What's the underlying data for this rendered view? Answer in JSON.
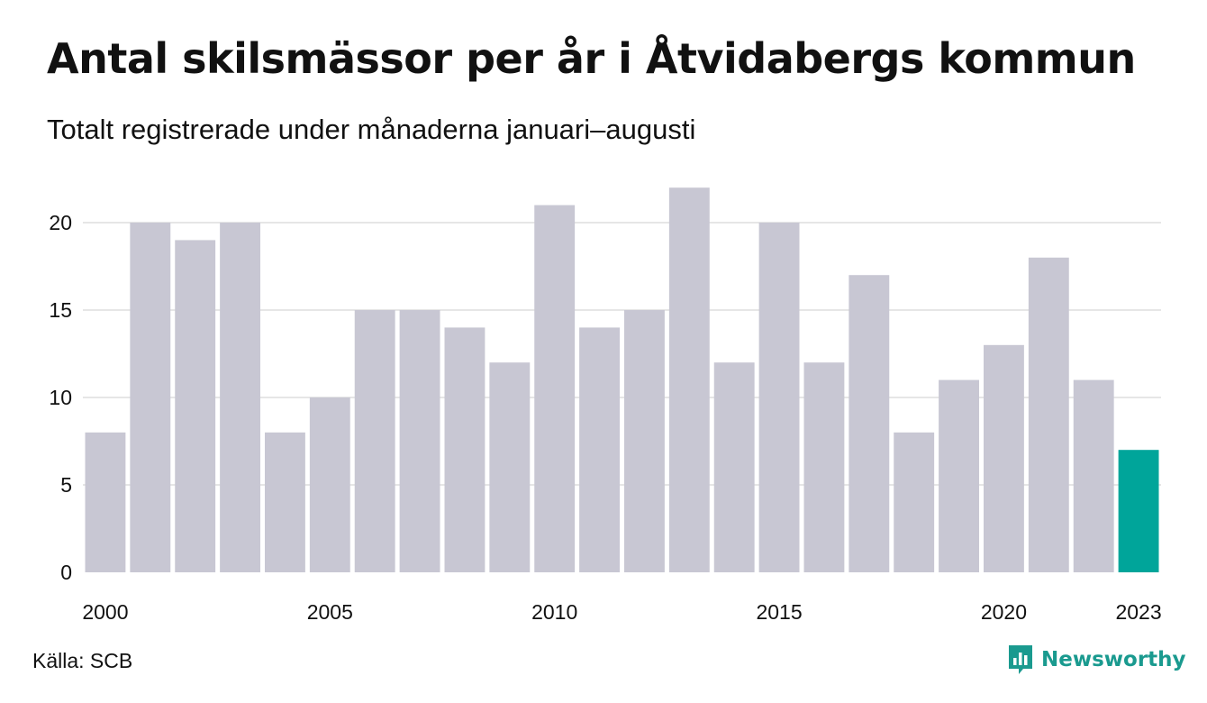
{
  "title": "Antal skilsmässor per år i Åtvidabergs kommun",
  "subtitle": "Totalt registrerade under månaderna januari–augusti",
  "source": "Källa: SCB",
  "brand": {
    "name": "Newsworthy",
    "icon": "newsworthy-logo-icon",
    "color": "#1a9a8f"
  },
  "chart_data": {
    "type": "bar",
    "categories": [
      "2000",
      "2001",
      "2002",
      "2003",
      "2004",
      "2005",
      "2006",
      "2007",
      "2008",
      "2009",
      "2010",
      "2011",
      "2012",
      "2013",
      "2014",
      "2015",
      "2016",
      "2017",
      "2018",
      "2019",
      "2020",
      "2021",
      "2022",
      "2023"
    ],
    "values": [
      8,
      20,
      19,
      20,
      8,
      10,
      15,
      15,
      14,
      12,
      21,
      14,
      15,
      22,
      12,
      20,
      12,
      17,
      8,
      11,
      13,
      18,
      11,
      7
    ],
    "x_tick_labels": [
      "2000",
      "2005",
      "2010",
      "2015",
      "2020",
      "2023"
    ],
    "y_ticks": [
      0,
      5,
      10,
      15,
      20
    ],
    "ylim": [
      0,
      22
    ],
    "grid": true,
    "colors": {
      "default": "#c8c7d3",
      "highlight": "#00a59a",
      "grid": "#e6e6e6"
    },
    "highlight_category": "2023"
  }
}
